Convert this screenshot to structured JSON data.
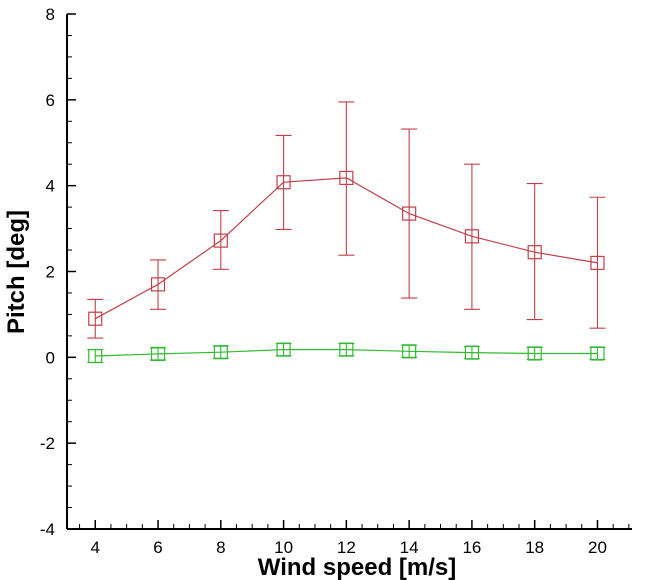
{
  "chart_data": {
    "type": "line",
    "title": "",
    "xlabel": "Wind speed [m/s]",
    "ylabel": "Pitch [deg]",
    "xlim": [
      3.1,
      21.1
    ],
    "ylim": [
      -4,
      8
    ],
    "x_ticks": [
      4,
      6,
      8,
      10,
      12,
      14,
      16,
      18,
      20
    ],
    "y_ticks": [
      -4,
      -2,
      0,
      2,
      4,
      6,
      8
    ],
    "grid": false,
    "legend": "none",
    "x": [
      4,
      6,
      8,
      10,
      12,
      14,
      16,
      18,
      20
    ],
    "series": [
      {
        "name": "red-series",
        "color": "#c0404a",
        "marker": "square",
        "values": [
          0.9,
          1.7,
          2.72,
          4.08,
          4.18,
          3.35,
          2.82,
          2.45,
          2.2
        ],
        "err_low": [
          0.45,
          1.12,
          2.05,
          2.98,
          2.38,
          1.38,
          1.12,
          0.88,
          0.68
        ],
        "err_high": [
          1.35,
          2.27,
          3.42,
          5.17,
          5.95,
          5.32,
          4.5,
          4.05,
          3.73
        ]
      },
      {
        "name": "green-series",
        "color": "#33bb33",
        "marker": "square",
        "values": [
          0.03,
          0.08,
          0.12,
          0.18,
          0.18,
          0.14,
          0.11,
          0.09,
          0.09
        ],
        "err_low": [
          -0.12,
          -0.06,
          -0.02,
          0.04,
          0.04,
          0.0,
          -0.03,
          -0.05,
          -0.05
        ],
        "err_high": [
          0.18,
          0.22,
          0.26,
          0.32,
          0.32,
          0.28,
          0.25,
          0.23,
          0.23
        ]
      }
    ]
  }
}
